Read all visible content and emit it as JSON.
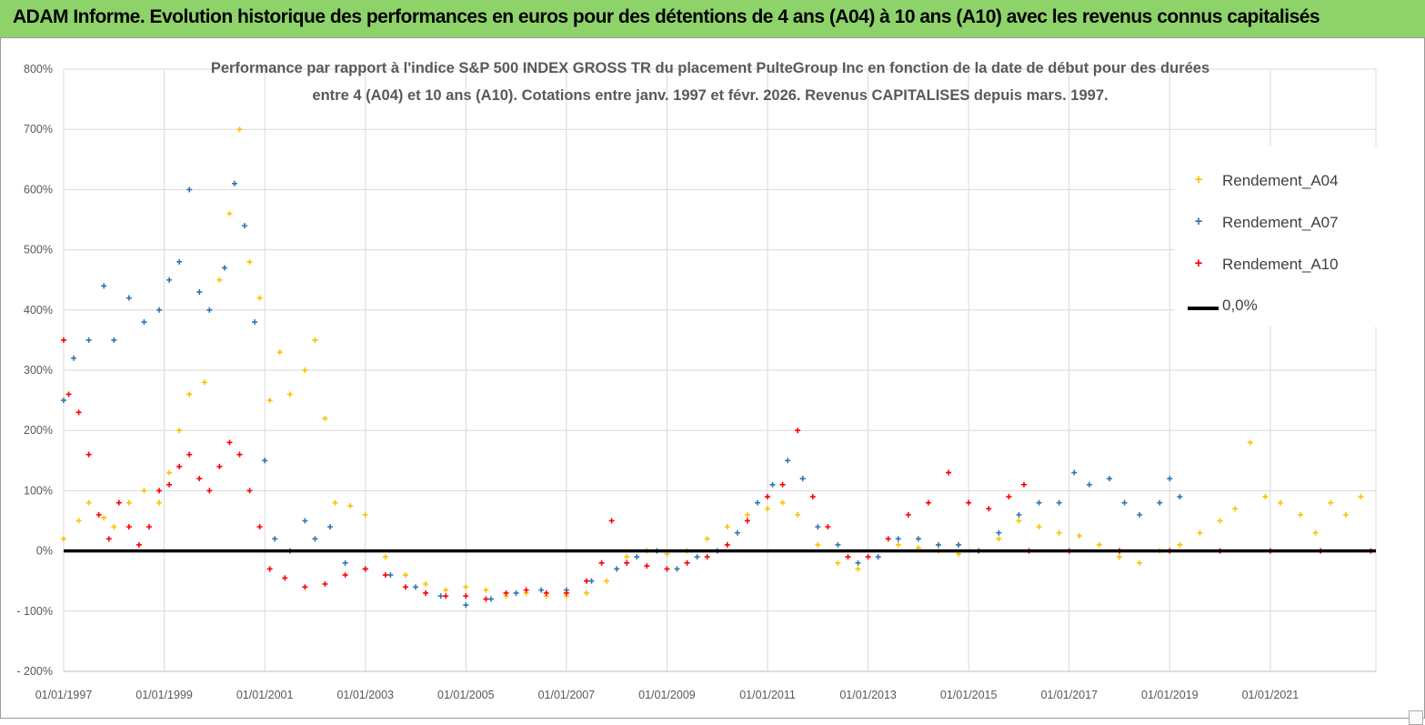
{
  "banner": {
    "title": "ADAM Informe. Evolution historique des performances en euros pour des détentions de 4 ans (A04) à 10 ans (A10) avec les revenus connus capitalisés"
  },
  "chart": {
    "subtitle_line1": "Performance par rapport à l'indice S&P 500 INDEX GROSS TR  du placement PulteGroup Inc en fonction de la date de début pour des durées",
    "subtitle_line2": "entre 4 (A04) et 10 ans (A10). Cotations entre janv. 1997 et févr. 2026. Revenus CAPITALISES depuis mars. 1997.",
    "legend": {
      "a04": "Rendement_A04",
      "a07": "Rendement_A07",
      "a10": "Rendement_A10",
      "zero": "0,0%"
    },
    "y_ticks": [
      "800%",
      "700%",
      "600%",
      "500%",
      "400%",
      "300%",
      "200%",
      "100%",
      "0%",
      "- 100%",
      "- 200%"
    ],
    "x_ticks": [
      "01/01/1997",
      "01/01/1999",
      "01/01/2001",
      "01/01/2003",
      "01/01/2005",
      "01/01/2007",
      "01/01/2009",
      "01/01/2011",
      "01/01/2013",
      "01/01/2015",
      "01/01/2017",
      "01/01/2019",
      "01/01/2021"
    ]
  },
  "colors": {
    "banner": "#8ed36a",
    "a04": "#ffc000",
    "a07": "#2e75b6",
    "a10": "#ff0000",
    "zero": "#000000",
    "grid": "#d9d9d9"
  },
  "chart_data": {
    "type": "scatter",
    "title": "Performance par rapport à l'indice S&P 500 INDEX GROSS TR  du placement PulteGroup Inc en fonction de la date de début pour des durées entre 4 (A04) et 10 ans (A10). Cotations entre janv. 1997 et févr. 2026. Revenus CAPITALISES depuis mars. 1997.",
    "xlabel": "",
    "ylabel": "",
    "x_axis": "date",
    "xlim": [
      1997.0,
      2023.1
    ],
    "ylim": [
      -200,
      800
    ],
    "grid": true,
    "legend_position": "top-right",
    "series": [
      {
        "name": "Rendement_A04",
        "color": "#ffc000",
        "marker": "+",
        "points": [
          [
            1997.0,
            20
          ],
          [
            1997.3,
            50
          ],
          [
            1997.5,
            80
          ],
          [
            1997.8,
            55
          ],
          [
            1998.0,
            40
          ],
          [
            1998.3,
            80
          ],
          [
            1998.6,
            100
          ],
          [
            1998.9,
            80
          ],
          [
            1999.1,
            130
          ],
          [
            1999.3,
            200
          ],
          [
            1999.5,
            260
          ],
          [
            1999.8,
            280
          ],
          [
            2000.1,
            450
          ],
          [
            2000.3,
            560
          ],
          [
            2000.5,
            700
          ],
          [
            2000.7,
            480
          ],
          [
            2000.9,
            420
          ],
          [
            2001.1,
            250
          ],
          [
            2001.3,
            330
          ],
          [
            2001.5,
            260
          ],
          [
            2001.8,
            300
          ],
          [
            2002.0,
            350
          ],
          [
            2002.2,
            220
          ],
          [
            2002.4,
            80
          ],
          [
            2002.7,
            75
          ],
          [
            2003.0,
            60
          ],
          [
            2003.4,
            -10
          ],
          [
            2003.8,
            -40
          ],
          [
            2004.2,
            -55
          ],
          [
            2004.6,
            -65
          ],
          [
            2005.0,
            -60
          ],
          [
            2005.4,
            -65
          ],
          [
            2005.8,
            -75
          ],
          [
            2006.2,
            -70
          ],
          [
            2006.6,
            -75
          ],
          [
            2007.0,
            -75
          ],
          [
            2007.4,
            -70
          ],
          [
            2007.8,
            -50
          ],
          [
            2008.2,
            -10
          ],
          [
            2008.6,
            0
          ],
          [
            2009.0,
            -5
          ],
          [
            2009.4,
            0
          ],
          [
            2009.8,
            20
          ],
          [
            2010.2,
            40
          ],
          [
            2010.6,
            60
          ],
          [
            2011.0,
            70
          ],
          [
            2011.3,
            80
          ],
          [
            2011.6,
            60
          ],
          [
            2012.0,
            10
          ],
          [
            2012.4,
            -20
          ],
          [
            2012.8,
            -30
          ],
          [
            2013.2,
            -10
          ],
          [
            2013.6,
            10
          ],
          [
            2014.0,
            5
          ],
          [
            2014.4,
            0
          ],
          [
            2014.8,
            -5
          ],
          [
            2015.2,
            0
          ],
          [
            2015.6,
            20
          ],
          [
            2016.0,
            50
          ],
          [
            2016.4,
            40
          ],
          [
            2016.8,
            30
          ],
          [
            2017.2,
            25
          ],
          [
            2017.6,
            10
          ],
          [
            2018.0,
            -10
          ],
          [
            2018.4,
            -20
          ],
          [
            2018.8,
            0
          ],
          [
            2019.2,
            10
          ],
          [
            2019.6,
            30
          ],
          [
            2020.0,
            50
          ],
          [
            2020.3,
            70
          ],
          [
            2020.6,
            180
          ],
          [
            2020.9,
            90
          ],
          [
            2021.2,
            80
          ],
          [
            2021.6,
            60
          ],
          [
            2021.9,
            30
          ],
          [
            2022.2,
            80
          ],
          [
            2022.5,
            60
          ],
          [
            2022.8,
            90
          ]
        ]
      },
      {
        "name": "Rendement_A07",
        "color": "#2e75b6",
        "marker": "+",
        "points": [
          [
            1997.0,
            250
          ],
          [
            1997.2,
            320
          ],
          [
            1997.5,
            350
          ],
          [
            1997.8,
            440
          ],
          [
            1998.0,
            350
          ],
          [
            1998.3,
            420
          ],
          [
            1998.6,
            380
          ],
          [
            1998.9,
            400
          ],
          [
            1999.1,
            450
          ],
          [
            1999.3,
            480
          ],
          [
            1999.5,
            600
          ],
          [
            1999.7,
            430
          ],
          [
            1999.9,
            400
          ],
          [
            2000.2,
            470
          ],
          [
            2000.4,
            610
          ],
          [
            2000.6,
            540
          ],
          [
            2000.8,
            380
          ],
          [
            2001.0,
            150
          ],
          [
            2001.2,
            20
          ],
          [
            2001.5,
            0
          ],
          [
            2001.8,
            50
          ],
          [
            2002.0,
            20
          ],
          [
            2002.3,
            40
          ],
          [
            2002.6,
            -20
          ],
          [
            2003.0,
            -30
          ],
          [
            2003.5,
            -40
          ],
          [
            2004.0,
            -60
          ],
          [
            2004.5,
            -75
          ],
          [
            2005.0,
            -90
          ],
          [
            2005.5,
            -80
          ],
          [
            2006.0,
            -70
          ],
          [
            2006.5,
            -65
          ],
          [
            2007.0,
            -65
          ],
          [
            2007.5,
            -50
          ],
          [
            2008.0,
            -30
          ],
          [
            2008.4,
            -10
          ],
          [
            2008.8,
            0
          ],
          [
            2009.2,
            -30
          ],
          [
            2009.6,
            -10
          ],
          [
            2010.0,
            0
          ],
          [
            2010.4,
            30
          ],
          [
            2010.8,
            80
          ],
          [
            2011.1,
            110
          ],
          [
            2011.4,
            150
          ],
          [
            2011.7,
            120
          ],
          [
            2012.0,
            40
          ],
          [
            2012.4,
            10
          ],
          [
            2012.8,
            -20
          ],
          [
            2013.2,
            -10
          ],
          [
            2013.6,
            20
          ],
          [
            2014.0,
            20
          ],
          [
            2014.4,
            10
          ],
          [
            2014.8,
            10
          ],
          [
            2015.2,
            0
          ],
          [
            2015.6,
            30
          ],
          [
            2016.0,
            60
          ],
          [
            2016.4,
            80
          ],
          [
            2016.8,
            80
          ],
          [
            2017.1,
            130
          ],
          [
            2017.4,
            110
          ],
          [
            2017.8,
            120
          ],
          [
            2018.1,
            80
          ],
          [
            2018.4,
            60
          ],
          [
            2018.8,
            80
          ],
          [
            2019.0,
            120
          ],
          [
            2019.2,
            90
          ]
        ]
      },
      {
        "name": "Rendement_A10",
        "color": "#ff0000",
        "marker": "+",
        "points": [
          [
            1997.0,
            350
          ],
          [
            1997.1,
            260
          ],
          [
            1997.3,
            230
          ],
          [
            1997.5,
            160
          ],
          [
            1997.7,
            60
          ],
          [
            1997.9,
            20
          ],
          [
            1998.1,
            80
          ],
          [
            1998.3,
            40
          ],
          [
            1998.5,
            10
          ],
          [
            1998.7,
            40
          ],
          [
            1998.9,
            100
          ],
          [
            1999.1,
            110
          ],
          [
            1999.3,
            140
          ],
          [
            1999.5,
            160
          ],
          [
            1999.7,
            120
          ],
          [
            1999.9,
            100
          ],
          [
            2000.1,
            140
          ],
          [
            2000.3,
            180
          ],
          [
            2000.5,
            160
          ],
          [
            2000.7,
            100
          ],
          [
            2000.9,
            40
          ],
          [
            2001.1,
            -30
          ],
          [
            2001.4,
            -45
          ],
          [
            2001.8,
            -60
          ],
          [
            2002.2,
            -55
          ],
          [
            2002.6,
            -40
          ],
          [
            2003.0,
            -30
          ],
          [
            2003.4,
            -40
          ],
          [
            2003.8,
            -60
          ],
          [
            2004.2,
            -70
          ],
          [
            2004.6,
            -75
          ],
          [
            2005.0,
            -75
          ],
          [
            2005.4,
            -80
          ],
          [
            2005.8,
            -70
          ],
          [
            2006.2,
            -65
          ],
          [
            2006.6,
            -70
          ],
          [
            2007.0,
            -70
          ],
          [
            2007.4,
            -50
          ],
          [
            2007.7,
            -20
          ],
          [
            2007.9,
            50
          ],
          [
            2008.2,
            -20
          ],
          [
            2008.6,
            -25
          ],
          [
            2009.0,
            -30
          ],
          [
            2009.4,
            -20
          ],
          [
            2009.8,
            -10
          ],
          [
            2010.2,
            10
          ],
          [
            2010.6,
            50
          ],
          [
            2011.0,
            90
          ],
          [
            2011.3,
            110
          ],
          [
            2011.6,
            200
          ],
          [
            2011.9,
            90
          ],
          [
            2012.2,
            40
          ],
          [
            2012.6,
            -10
          ],
          [
            2013.0,
            -10
          ],
          [
            2013.4,
            20
          ],
          [
            2013.8,
            60
          ],
          [
            2014.2,
            80
          ],
          [
            2014.6,
            130
          ],
          [
            2015.0,
            80
          ],
          [
            2015.4,
            70
          ],
          [
            2015.8,
            90
          ],
          [
            2016.1,
            110
          ],
          [
            2016.2,
            0
          ],
          [
            2017.0,
            0
          ],
          [
            2018.0,
            0
          ],
          [
            2019.0,
            0
          ],
          [
            2020.0,
            0
          ],
          [
            2021.0,
            0
          ],
          [
            2022.0,
            0
          ],
          [
            2023.0,
            0
          ]
        ]
      },
      {
        "name": "0,0%",
        "color": "#000000",
        "type": "line",
        "points": [
          [
            1997.0,
            0
          ],
          [
            2023.1,
            0
          ]
        ]
      }
    ]
  }
}
